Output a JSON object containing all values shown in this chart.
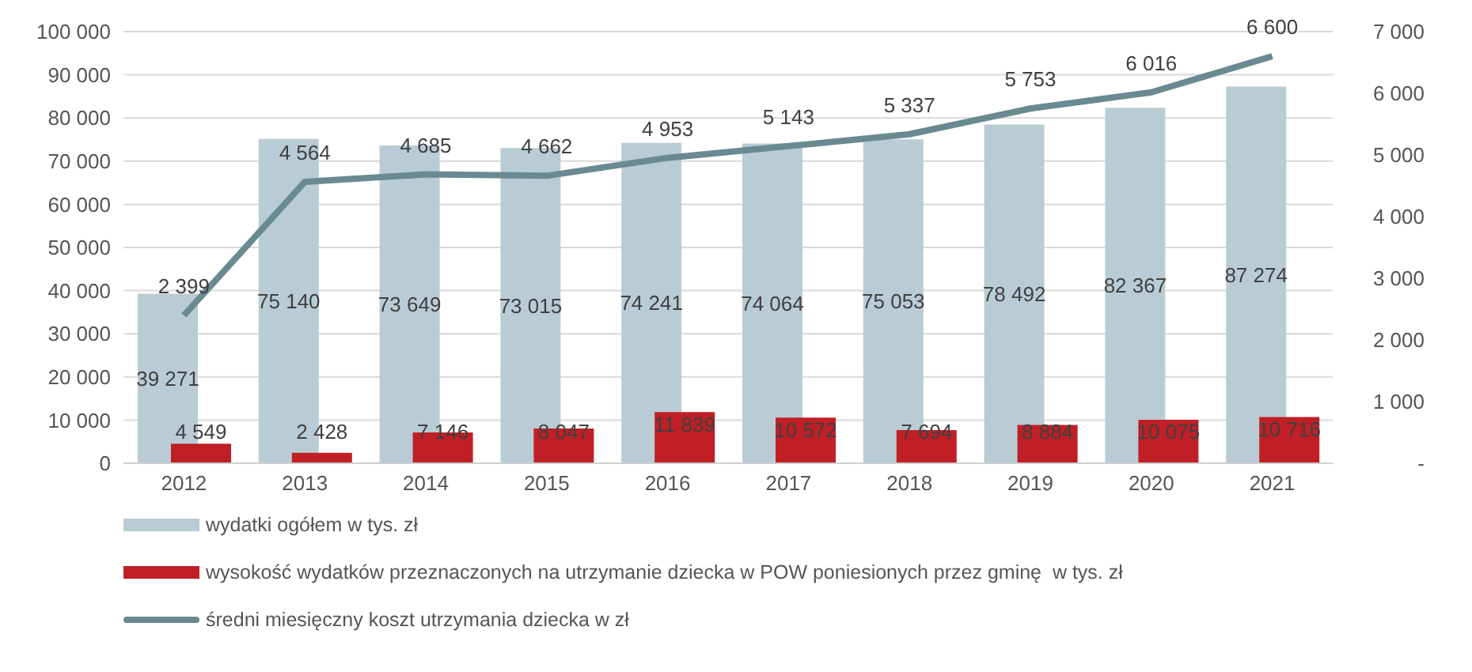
{
  "chart_data": {
    "type": "bar",
    "categories": [
      "2012",
      "2013",
      "2014",
      "2015",
      "2016",
      "2017",
      "2018",
      "2019",
      "2020",
      "2021"
    ],
    "series": [
      {
        "name": "wydatki ogółem w tys. zł",
        "color": "#b9ccd5",
        "values": [
          39271,
          75140,
          73649,
          73015,
          74241,
          74064,
          75053,
          78492,
          82367,
          87274
        ]
      },
      {
        "name": "wysokość wydatków przeznaczonych na utrzymanie dziecka w POW poniesionych przez gminę  w tys. zł",
        "color": "#c01f26",
        "values": [
          4549,
          2428,
          7146,
          8047,
          11839,
          10572,
          7694,
          8884,
          10075,
          10716
        ]
      },
      {
        "name": "średni miesięczny koszt utrzymania dziecka w zł",
        "type": "line",
        "axis": "y2",
        "color": "#6a8a92",
        "values": [
          2399,
          4564,
          4685,
          4662,
          4953,
          5143,
          5337,
          5753,
          6016,
          6600
        ]
      }
    ],
    "ylim": [
      0,
      100000
    ],
    "yticks": [
      0,
      {
        "value": 10000,
        "label": "10 000"
      },
      {
        "value": 20000,
        "label": "20 000"
      },
      {
        "value": 30000,
        "label": "30 000"
      },
      {
        "value": 40000,
        "label": "40 000"
      },
      {
        "value": 50000,
        "label": "50 000"
      },
      {
        "value": 60000,
        "label": "60 000"
      },
      {
        "value": 70000,
        "label": "70 000"
      },
      {
        "value": 80000,
        "label": "80 000"
      },
      {
        "value": 90000,
        "label": "90 000"
      },
      {
        "value": 100000,
        "label": "100 000"
      }
    ],
    "y2lim": [
      0,
      7000
    ],
    "y2ticks": [
      {
        "value": 0,
        "label": "-"
      },
      {
        "value": 1000,
        "label": "1 000"
      },
      {
        "value": 2000,
        "label": "2 000"
      },
      {
        "value": 3000,
        "label": "3 000"
      },
      {
        "value": 4000,
        "label": "4 000"
      },
      {
        "value": 5000,
        "label": "5 000"
      },
      {
        "value": 6000,
        "label": "6 000"
      },
      {
        "value": 7000,
        "label": "7 000"
      }
    ],
    "grid": "y",
    "legend": "bottom",
    "data_labels": true,
    "marker": "none",
    "line_style": "solid"
  }
}
